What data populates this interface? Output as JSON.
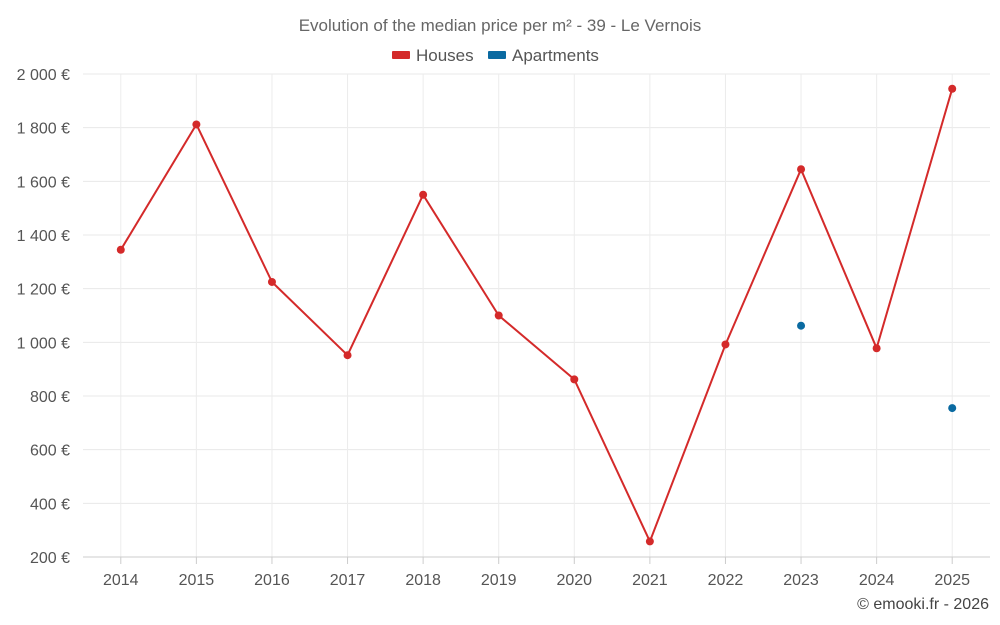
{
  "chart_data": {
    "type": "line",
    "title": "Evolution of the median price per m² - 39 - Le Vernois",
    "categories": [
      "2014",
      "2015",
      "2016",
      "2017",
      "2018",
      "2019",
      "2020",
      "2021",
      "2022",
      "2023",
      "2024",
      "2025"
    ],
    "y_ticks": [
      "200 €",
      "400 €",
      "600 €",
      "800 €",
      "1 000 €",
      "1 200 €",
      "1 400 €",
      "1 600 €",
      "1 800 €",
      "2 000 €"
    ],
    "ylim": [
      200,
      2000
    ],
    "grid": true,
    "legend_position": "top-center",
    "series": [
      {
        "name": "Houses",
        "color": "#d42a2a",
        "values": [
          1345,
          1812,
          1225,
          952,
          1550,
          1100,
          862,
          258,
          992,
          1645,
          978,
          1945
        ]
      },
      {
        "name": "Apartments",
        "color": "#0a6aa1",
        "values": [
          null,
          null,
          null,
          null,
          null,
          null,
          null,
          null,
          null,
          1062,
          null,
          755
        ]
      }
    ]
  },
  "credit": "© emooki.fr - 2026"
}
